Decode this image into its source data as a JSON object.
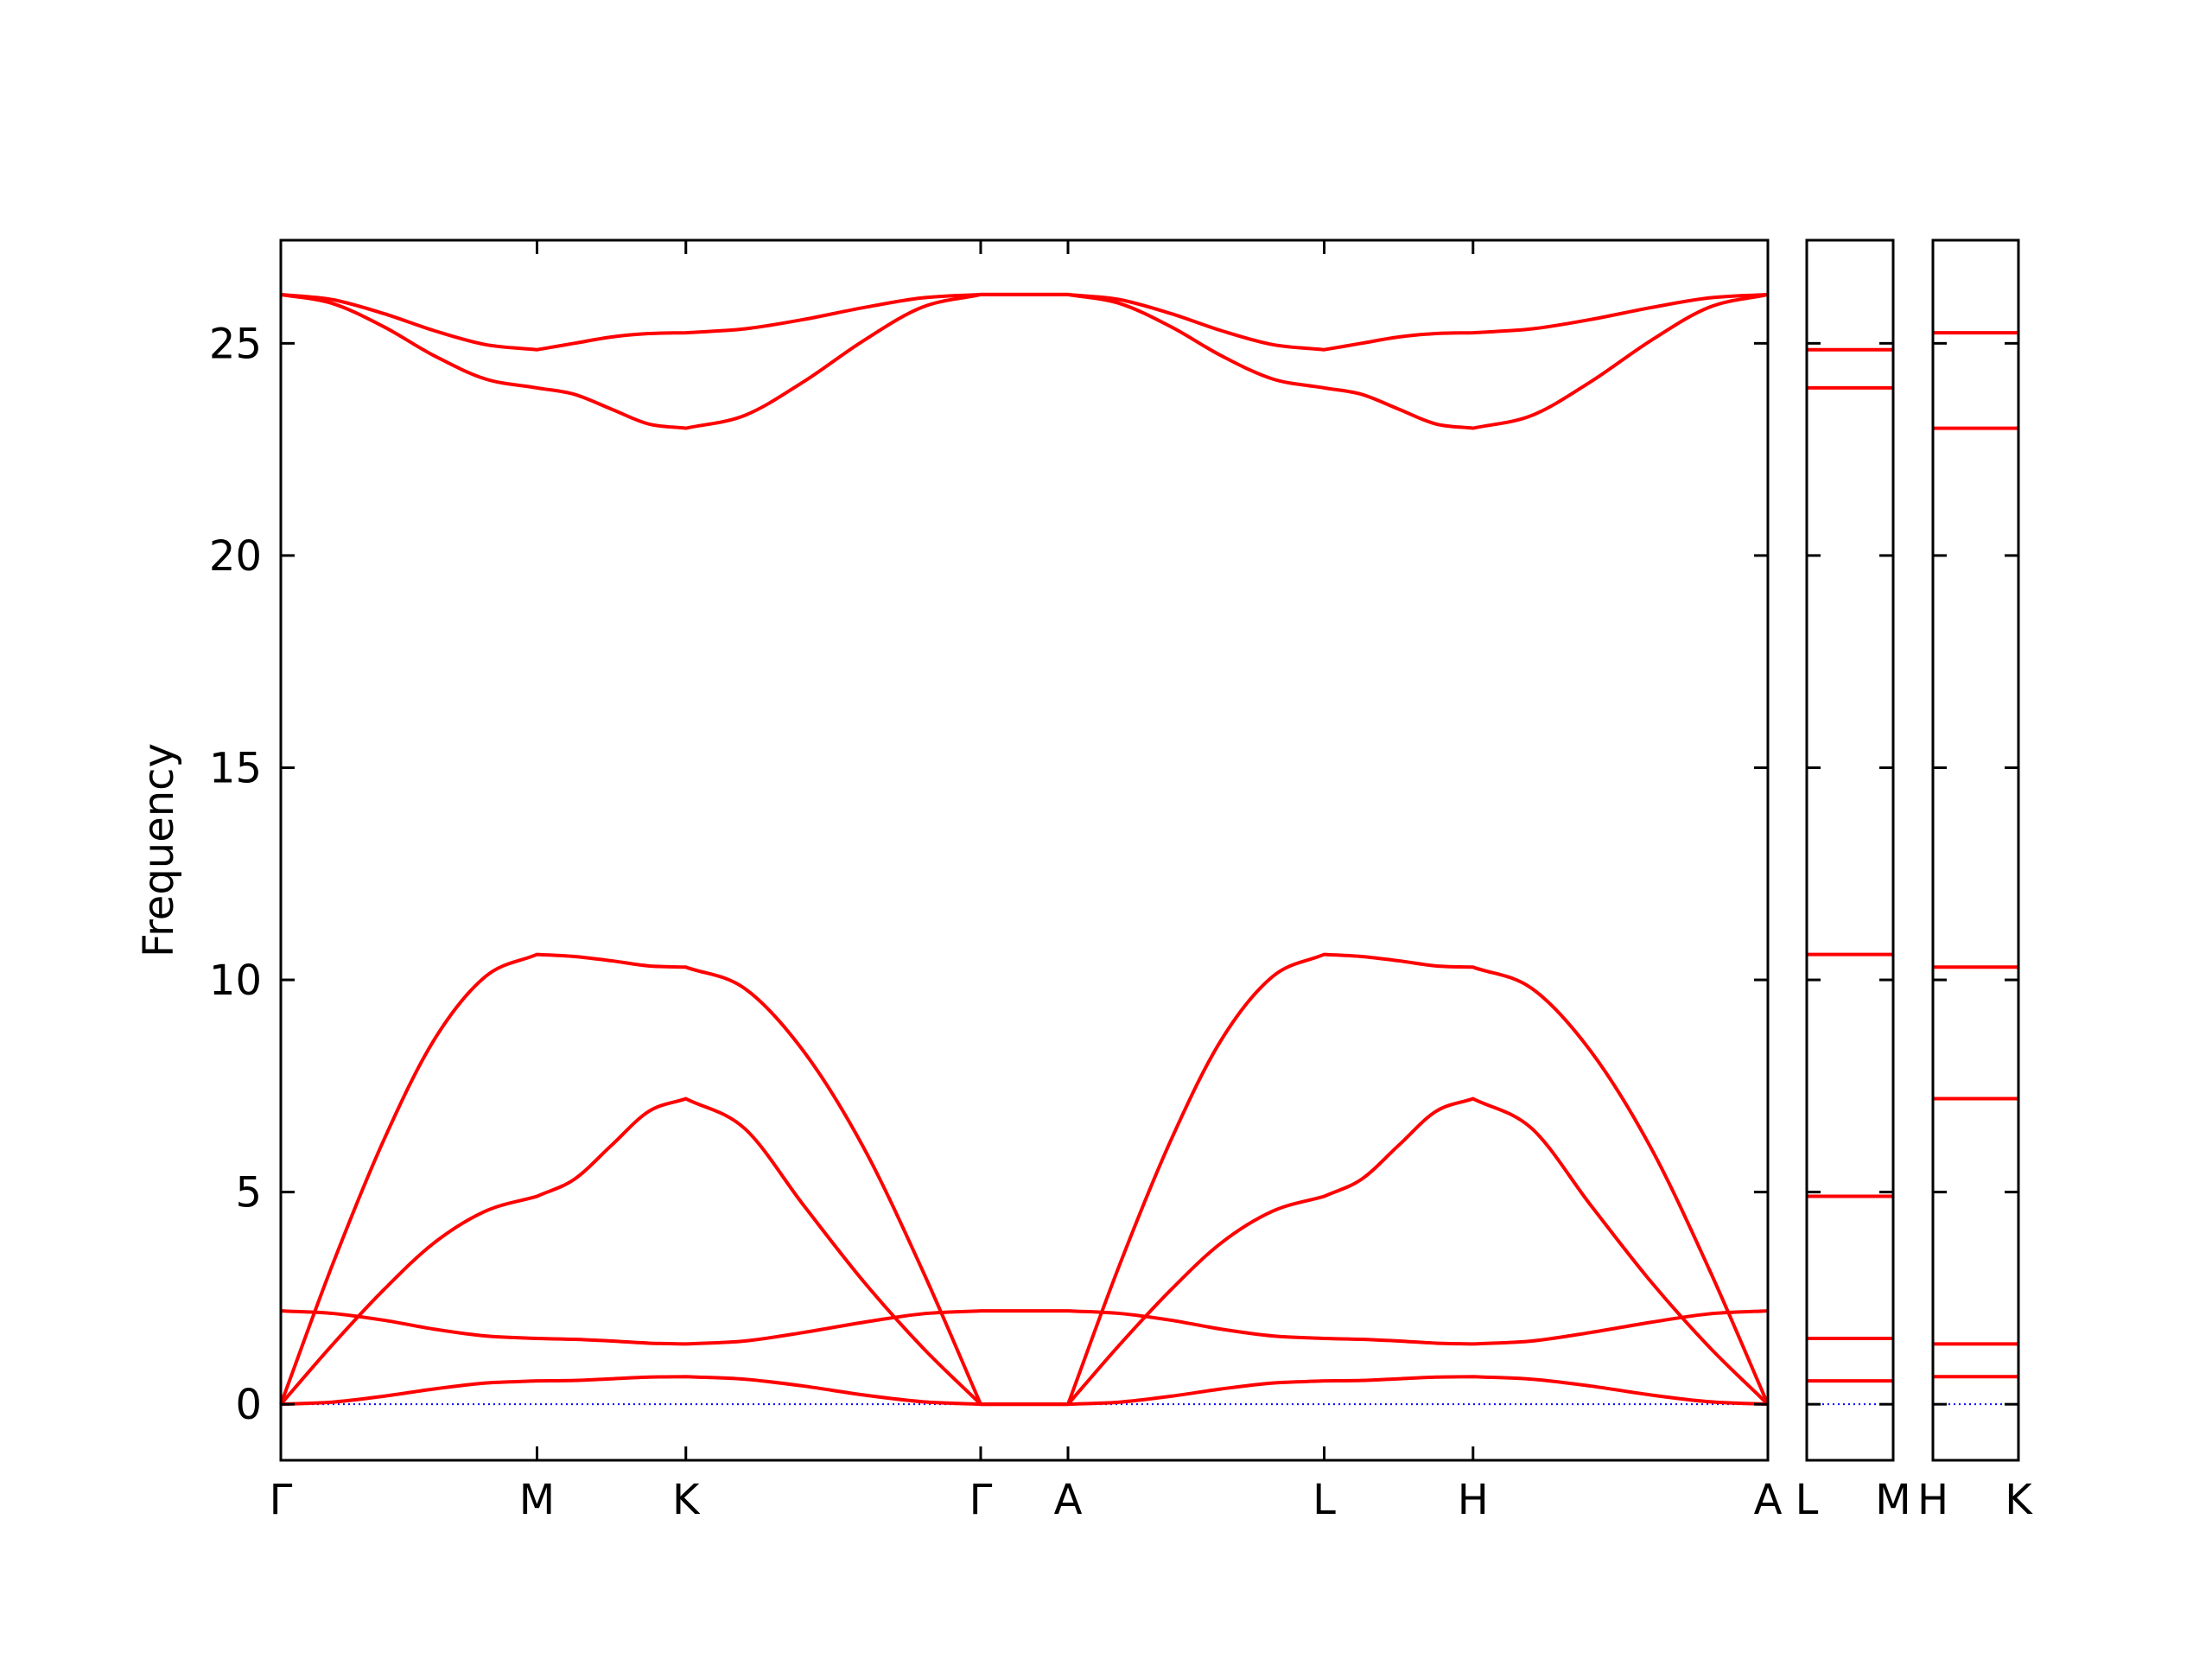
{
  "chart_data": [
    {
      "type": "line",
      "ylabel": "Frequency",
      "color": "#ff0000",
      "show_ytick_labels": true,
      "hline": {
        "y": 0,
        "color": "#0000ff",
        "style": "dotted"
      },
      "xlim": [
        0,
        10.39
      ],
      "ylim": [
        -1.32,
        27.43
      ],
      "xticks": [
        {
          "value": 0,
          "label": "Γ"
        },
        {
          "value": 1.79,
          "label": "M"
        },
        {
          "value": 2.83,
          "label": "K"
        },
        {
          "value": 4.89,
          "label": "Γ"
        },
        {
          "value": 5.5,
          "label": "A"
        },
        {
          "value": 7.29,
          "label": "L"
        },
        {
          "value": 8.33,
          "label": "H"
        },
        {
          "value": 10.39,
          "label": "A"
        }
      ],
      "yticks": [
        0,
        5,
        10,
        15,
        20,
        25
      ],
      "x": [
        0,
        0.36,
        0.72,
        1.07,
        1.43,
        1.79,
        2.05,
        2.31,
        2.57,
        2.83,
        3.24,
        3.65,
        4.07,
        4.48,
        4.89,
        5.5,
        5.86,
        6.22,
        6.57,
        6.93,
        7.29,
        7.55,
        7.81,
        8.07,
        8.33,
        8.74,
        9.15,
        9.57,
        9.98,
        10.39
      ],
      "series": [
        {
          "values": [
            0,
            0.05,
            0.19,
            0.36,
            0.5,
            0.55,
            0.56,
            0.6,
            0.64,
            0.65,
            0.59,
            0.43,
            0.22,
            0.06,
            0,
            0,
            0.05,
            0.19,
            0.36,
            0.5,
            0.55,
            0.56,
            0.6,
            0.64,
            0.65,
            0.59,
            0.43,
            0.22,
            0.06,
            0
          ]
        },
        {
          "values": [
            2.2,
            2.14,
            1.98,
            1.77,
            1.61,
            1.55,
            1.53,
            1.49,
            1.44,
            1.42,
            1.49,
            1.69,
            1.93,
            2.13,
            2.2,
            2.2,
            2.14,
            1.98,
            1.77,
            1.61,
            1.55,
            1.53,
            1.49,
            1.44,
            1.42,
            1.49,
            1.69,
            1.93,
            2.13,
            2.2
          ]
        },
        {
          "values": [
            0,
            1.4,
            2.7,
            3.8,
            4.55,
            4.9,
            5.3,
            6.1,
            6.9,
            7.2,
            6.5,
            4.7,
            2.9,
            1.35,
            0,
            0,
            1.4,
            2.7,
            3.8,
            4.55,
            4.9,
            5.3,
            6.1,
            6.9,
            7.2,
            6.5,
            4.7,
            2.9,
            1.35,
            0
          ]
        },
        {
          "values": [
            0,
            3.28,
            6.23,
            8.58,
            10.08,
            10.6,
            10.55,
            10.45,
            10.33,
            10.3,
            9.8,
            8.33,
            6.06,
            3.18,
            0,
            0,
            3.28,
            6.23,
            8.58,
            10.08,
            10.6,
            10.55,
            10.45,
            10.33,
            10.3,
            9.8,
            8.33,
            6.06,
            3.18,
            0
          ]
        },
        {
          "values": [
            26.15,
            25.94,
            25.39,
            24.71,
            24.16,
            23.95,
            23.8,
            23.45,
            23.1,
            23.0,
            23.3,
            24.09,
            25.06,
            25.85,
            26.15,
            26.15,
            25.94,
            25.39,
            24.71,
            24.16,
            23.95,
            23.8,
            23.45,
            23.1,
            23.0,
            23.3,
            24.09,
            25.06,
            25.85,
            26.15
          ]
        },
        {
          "values": [
            26.15,
            26.03,
            25.7,
            25.3,
            24.97,
            24.85,
            25.0,
            25.15,
            25.23,
            25.25,
            25.34,
            25.56,
            25.84,
            26.07,
            26.15,
            26.15,
            26.03,
            25.7,
            25.3,
            24.97,
            24.85,
            25.0,
            25.15,
            25.23,
            25.25,
            25.34,
            25.56,
            25.84,
            26.07,
            26.15
          ]
        }
      ]
    },
    {
      "type": "line",
      "color": "#ff0000",
      "show_ytick_labels": false,
      "hline": {
        "y": 0,
        "color": "#0000ff",
        "style": "dotted"
      },
      "xlim": [
        0,
        1
      ],
      "ylim": [
        -1.32,
        27.43
      ],
      "xticks": [
        {
          "value": 0,
          "label": "L"
        },
        {
          "value": 1,
          "label": "M"
        }
      ],
      "yticks": [
        0,
        5,
        10,
        15,
        20,
        25
      ],
      "x": [
        0,
        1
      ],
      "series": [
        {
          "values": [
            0.55,
            0.55
          ]
        },
        {
          "values": [
            1.55,
            1.55
          ]
        },
        {
          "values": [
            4.9,
            4.9
          ]
        },
        {
          "values": [
            10.6,
            10.6
          ]
        },
        {
          "values": [
            23.95,
            23.95
          ]
        },
        {
          "values": [
            24.85,
            24.85
          ]
        }
      ]
    },
    {
      "type": "line",
      "color": "#ff0000",
      "show_ytick_labels": false,
      "hline": {
        "y": 0,
        "color": "#0000ff",
        "style": "dotted"
      },
      "xlim": [
        0,
        1
      ],
      "ylim": [
        -1.32,
        27.43
      ],
      "xticks": [
        {
          "value": 0,
          "label": "H"
        },
        {
          "value": 1,
          "label": "K"
        }
      ],
      "yticks": [
        0,
        5,
        10,
        15,
        20,
        25
      ],
      "x": [
        0,
        1
      ],
      "series": [
        {
          "values": [
            0.65,
            0.65
          ]
        },
        {
          "values": [
            1.42,
            1.42
          ]
        },
        {
          "values": [
            7.2,
            7.2
          ]
        },
        {
          "values": [
            10.3,
            10.3
          ]
        },
        {
          "values": [
            23.0,
            23.0
          ]
        },
        {
          "values": [
            25.25,
            25.25
          ]
        }
      ]
    }
  ]
}
